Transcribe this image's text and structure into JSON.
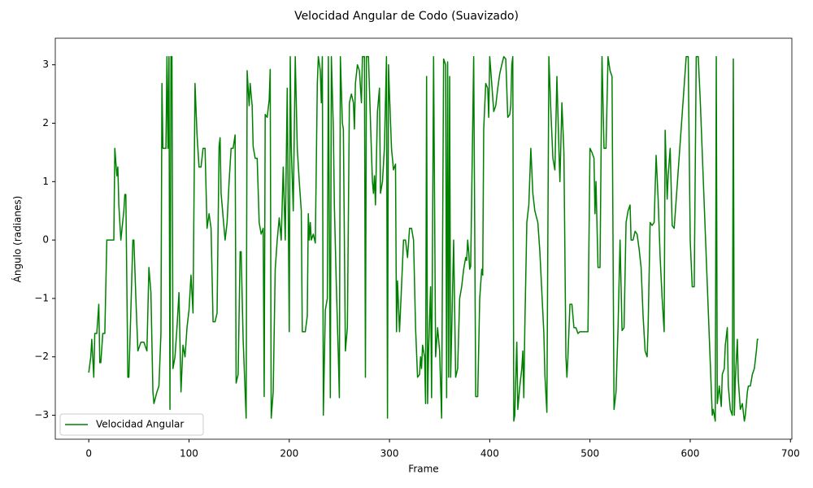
{
  "chart_data": {
    "type": "line",
    "title": "Velocidad Angular de Codo (Suavizado)",
    "xlabel": "Frame",
    "ylabel": "Ángulo (radianes)",
    "x": [
      0,
      2,
      3,
      5,
      6,
      8,
      10,
      11,
      12,
      14,
      16,
      18,
      25,
      26,
      28,
      29,
      30,
      32,
      35,
      36,
      37,
      39,
      40,
      42,
      44,
      45,
      47,
      49,
      52,
      55,
      58,
      60,
      62,
      64,
      65,
      68,
      70,
      72,
      73,
      74,
      77,
      78,
      79,
      80,
      81,
      82,
      83,
      84,
      86,
      88,
      90,
      92,
      94,
      96,
      98,
      100,
      102,
      104,
      106,
      108,
      110,
      112,
      114,
      116,
      118,
      120,
      122,
      124,
      126,
      128,
      130,
      131,
      132,
      134,
      136,
      138,
      140,
      142,
      144,
      146,
      147,
      149,
      151,
      152,
      154,
      157,
      158,
      160,
      161,
      163,
      164,
      166,
      168,
      170,
      172,
      174,
      175,
      176,
      178,
      180,
      181,
      182,
      184,
      186,
      188,
      190,
      192,
      194,
      196,
      198,
      200,
      201,
      202,
      204,
      206,
      208,
      210,
      212,
      213,
      216,
      218,
      219,
      220,
      221,
      222,
      224,
      226,
      228,
      229,
      231,
      232,
      233,
      234,
      236,
      238,
      239,
      241,
      242,
      244,
      245,
      247,
      249,
      250,
      251,
      253,
      254,
      256,
      258,
      260,
      262,
      264,
      265,
      266,
      268,
      270,
      272,
      273,
      275,
      276,
      277,
      279,
      282,
      283,
      284,
      285,
      286,
      288,
      290,
      291,
      293,
      295,
      297,
      298,
      299,
      300,
      302,
      304,
      306,
      307,
      308,
      310,
      312,
      314,
      316,
      318,
      320,
      322,
      324,
      326,
      328,
      330,
      331,
      332,
      333,
      335,
      336,
      337,
      338,
      339,
      341,
      342,
      344,
      346,
      348,
      350,
      352,
      354,
      356,
      357,
      358,
      359,
      360,
      361,
      362,
      364,
      366,
      368,
      370,
      372,
      374,
      376,
      377,
      378,
      379,
      380,
      381,
      384,
      386,
      388,
      390,
      392,
      393,
      394,
      396,
      398,
      399,
      400,
      402,
      404,
      406,
      408,
      410,
      412,
      414,
      416,
      418,
      420,
      421,
      422,
      423,
      424,
      425,
      426,
      427,
      428,
      430,
      432,
      433,
      434,
      435,
      437,
      439,
      441,
      443,
      445,
      448,
      450,
      452,
      454,
      455,
      457,
      459,
      461,
      463,
      465,
      467,
      469,
      470,
      472,
      474,
      476,
      477,
      478,
      480,
      482,
      484,
      486,
      488,
      490,
      492,
      494,
      496,
      498,
      500,
      502,
      504,
      505,
      506,
      508,
      510,
      512,
      514,
      516,
      518,
      520,
      522,
      524,
      526,
      528,
      530,
      532,
      534,
      536,
      538,
      540,
      541,
      543,
      545,
      547,
      549,
      551,
      553,
      555,
      557,
      558,
      560,
      562,
      564,
      566,
      568,
      570,
      572,
      574,
      575,
      577,
      578,
      580,
      582,
      584,
      596,
      598,
      600,
      602,
      604,
      606,
      608,
      610,
      622,
      623,
      625,
      626,
      627,
      629,
      631,
      632,
      634,
      635,
      637,
      638,
      640,
      642,
      643,
      644,
      645,
      647,
      648,
      650,
      652,
      654,
      655,
      657,
      658,
      660,
      662,
      664,
      666,
      667,
      668
    ],
    "series": [
      {
        "name": "Velocidad Angular",
        "color": "green",
        "values": [
          -2.27,
          -2.0,
          -1.7,
          -2.35,
          -1.6,
          -1.6,
          -1.1,
          -2.1,
          -2.1,
          -1.6,
          -1.6,
          0,
          0,
          1.57,
          1.1,
          1.25,
          0.6,
          0,
          0.5,
          0.78,
          0.78,
          -2.35,
          -2.35,
          -1.2,
          0,
          0,
          -1.0,
          -1.9,
          -1.75,
          -1.75,
          -1.9,
          -0.47,
          -0.9,
          -2.6,
          -2.8,
          -2.6,
          -2.5,
          -1.6,
          2.68,
          1.57,
          1.57,
          3.14,
          1.57,
          3.14,
          -2.9,
          3.14,
          3.14,
          -2.2,
          -2.0,
          -1.5,
          -0.9,
          -2.6,
          -1.8,
          -2.0,
          -1.5,
          -1.2,
          -0.6,
          -1.25,
          2.68,
          1.8,
          1.25,
          1.25,
          1.57,
          1.57,
          0.2,
          0.45,
          0.2,
          -1.4,
          -1.4,
          -1.25,
          1.6,
          1.75,
          0.8,
          0.4,
          0,
          0.3,
          1.0,
          1.57,
          1.57,
          1.8,
          -2.45,
          -2.3,
          -0.2,
          -0.2,
          -1.7,
          -3.05,
          2.9,
          2.3,
          2.68,
          2.3,
          1.6,
          1.4,
          1.4,
          0.3,
          0.1,
          0.2,
          -2.68,
          2.15,
          2.1,
          2.4,
          2.92,
          -3.05,
          -2.6,
          -0.5,
          0,
          0.38,
          0,
          1.25,
          0,
          2.6,
          -1.57,
          3.14,
          1.6,
          0.5,
          3.14,
          1.57,
          1.0,
          0.5,
          -1.57,
          -1.57,
          -1.3,
          0.45,
          0,
          0.3,
          0,
          0.1,
          -0.05,
          2.68,
          3.14,
          2.9,
          2.35,
          3.14,
          -3.0,
          -1.2,
          -1.0,
          3.14,
          -2.7,
          3.14,
          1.9,
          0.6,
          -0.8,
          -2.0,
          -2.7,
          3.14,
          2.0,
          1.9,
          -1.9,
          -1.5,
          2.35,
          2.5,
          2.35,
          1.9,
          2.68,
          3.0,
          2.9,
          2.35,
          3.14,
          3.14,
          -2.35,
          3.14,
          3.14,
          1.5,
          1.0,
          0.8,
          1.1,
          0.6,
          2.2,
          2.6,
          0.8,
          1.0,
          1.6,
          3.14,
          -3.05,
          3.0,
          2.5,
          1.57,
          1.2,
          1.3,
          -1.57,
          -0.7,
          -1.57,
          -0.8,
          0,
          0,
          -0.3,
          0.2,
          0.2,
          0,
          -1.5,
          -2.35,
          -2.3,
          -2.0,
          -2.2,
          -1.8,
          -2.0,
          -2.8,
          2.8,
          -2.8,
          -1.9,
          -0.8,
          -2.7,
          3.14,
          -2.0,
          -1.5,
          -1.9,
          -3.05,
          3.1,
          3.0,
          -2.7,
          3.05,
          -2.35,
          2.8,
          -2.35,
          -1.6,
          0,
          -2.35,
          -2.2,
          -1.0,
          -0.8,
          -0.5,
          -0.3,
          -0.35,
          0,
          -0.2,
          -0.5,
          -0.45,
          3.14,
          -2.68,
          -2.68,
          -1.0,
          -0.5,
          -0.6,
          1.9,
          2.68,
          2.6,
          2.1,
          3.14,
          2.68,
          2.2,
          2.3,
          2.6,
          2.85,
          3.0,
          3.14,
          3.1,
          2.1,
          2.15,
          2.3,
          3.0,
          3.14,
          -3.1,
          -3.0,
          -2.35,
          -1.75,
          -2.9,
          -2.5,
          -2.2,
          -1.9,
          -2.7,
          -1.5,
          0.3,
          0.6,
          1.57,
          0.8,
          0.5,
          0.3,
          -0.2,
          -0.9,
          -1.6,
          -2.3,
          -2.95,
          3.14,
          2.2,
          1.4,
          1.2,
          2.8,
          1.57,
          1.0,
          2.35,
          1.5,
          -2.0,
          -2.35,
          -2.0,
          -1.1,
          -1.1,
          -1.5,
          -1.5,
          -1.6,
          -1.57,
          -1.57,
          -1.57,
          -1.57,
          -1.57,
          1.57,
          1.5,
          1.4,
          0.45,
          1.0,
          -0.47,
          -0.47,
          3.14,
          1.57,
          1.57,
          3.14,
          2.9,
          2.8,
          -2.9,
          -2.6,
          -1.5,
          0,
          -1.55,
          -1.5,
          0.3,
          0.5,
          0.6,
          0,
          0,
          0.15,
          0.1,
          -0.15,
          -0.47,
          -1.3,
          -1.9,
          -2.0,
          -1.5,
          0.3,
          0.25,
          0.3,
          1.45,
          0.7,
          -0.3,
          -1.0,
          -1.57,
          1.88,
          0.7,
          1.1,
          1.57,
          0.25,
          0.2,
          3.14,
          3.14,
          0,
          -0.8,
          -0.8,
          3.14,
          3.14,
          2.4,
          -3.0,
          -2.9,
          -3.1,
          3.14,
          -2.8,
          -2.5,
          -2.85,
          -2.3,
          -2.2,
          -1.8,
          -1.5,
          -2.5,
          -2.9,
          -3.0,
          3.1,
          -3.0,
          -2.4,
          -1.7,
          -2.4,
          -2.9,
          -2.8,
          -3.1,
          -3.0,
          -2.6,
          -2.5,
          -2.5,
          -2.3,
          -2.2,
          -1.9,
          -1.7,
          -1.7
        ]
      }
    ],
    "xlim": [
      -33.4,
      701.4
    ],
    "ylim": [
      -3.41,
      3.455
    ],
    "xticks": [
      0,
      100,
      200,
      300,
      400,
      500,
      600,
      700
    ],
    "yticks": [
      {
        "value": -3,
        "label": "−3"
      },
      {
        "value": -2,
        "label": "−2"
      },
      {
        "value": -1,
        "label": "−1"
      },
      0,
      1,
      2,
      3
    ],
    "legend": "lower left"
  }
}
